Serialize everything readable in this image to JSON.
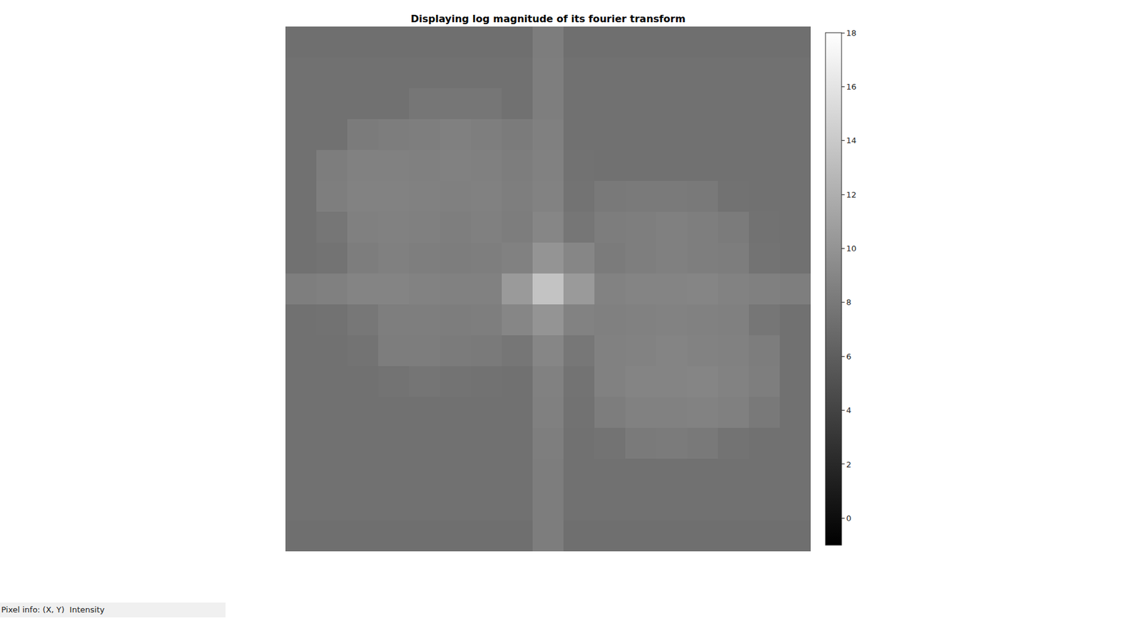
{
  "chart_data": {
    "type": "heatmap",
    "title": "Displaying log magnitude of its fourier transform",
    "color": "gray",
    "tick_labels": false,
    "cells": [
      [
        7.3,
        7.3,
        7.3,
        7.3,
        7.3,
        7.3,
        7.3,
        7.3,
        8.3,
        7.3,
        7.3,
        7.3,
        7.3,
        7.3,
        7.3,
        7.3,
        7.3
      ],
      [
        7.4,
        7.4,
        7.4,
        7.4,
        7.4,
        7.4,
        7.4,
        7.4,
        8.4,
        7.4,
        7.4,
        7.4,
        7.4,
        7.4,
        7.4,
        7.4,
        7.4
      ],
      [
        7.4,
        7.4,
        7.4,
        7.4,
        7.8,
        7.8,
        7.8,
        7.4,
        8.4,
        7.4,
        7.4,
        7.4,
        7.4,
        7.4,
        7.4,
        7.4,
        7.4
      ],
      [
        7.4,
        7.4,
        8.2,
        8.3,
        8.4,
        8.5,
        8.4,
        8.2,
        8.5,
        7.4,
        7.4,
        7.4,
        7.4,
        7.4,
        7.4,
        7.4,
        7.4
      ],
      [
        7.4,
        8.3,
        8.6,
        8.6,
        8.5,
        8.6,
        8.5,
        8.3,
        8.6,
        7.5,
        7.4,
        7.4,
        7.4,
        7.4,
        7.4,
        7.4,
        7.4
      ],
      [
        7.4,
        8.4,
        8.7,
        8.7,
        8.6,
        8.5,
        8.6,
        8.4,
        8.7,
        7.6,
        8.0,
        8.1,
        8.1,
        8.0,
        7.5,
        7.4,
        7.4
      ],
      [
        7.4,
        7.8,
        8.5,
        8.6,
        8.5,
        8.4,
        8.5,
        8.3,
        9.0,
        7.8,
        8.3,
        8.4,
        8.5,
        8.4,
        8.2,
        7.5,
        7.4
      ],
      [
        7.4,
        7.6,
        8.3,
        8.5,
        8.4,
        8.3,
        8.4,
        8.6,
        10.0,
        9.0,
        8.2,
        8.4,
        8.5,
        8.4,
        8.3,
        7.6,
        7.4
      ],
      [
        8.4,
        8.5,
        8.8,
        8.8,
        8.7,
        8.6,
        8.6,
        10.5,
        13.5,
        10.5,
        8.7,
        8.8,
        8.8,
        8.9,
        8.7,
        8.5,
        8.4
      ],
      [
        7.4,
        7.5,
        7.9,
        8.4,
        8.4,
        8.3,
        8.4,
        9.0,
        10.0,
        8.7,
        8.5,
        8.6,
        8.7,
        8.6,
        8.5,
        7.8,
        7.4
      ],
      [
        7.4,
        7.4,
        7.6,
        8.3,
        8.3,
        8.2,
        8.1,
        7.8,
        9.0,
        7.9,
        8.6,
        8.7,
        8.8,
        8.7,
        8.6,
        8.3,
        7.4
      ],
      [
        7.4,
        7.4,
        7.4,
        7.6,
        7.7,
        7.6,
        7.5,
        7.4,
        8.6,
        7.6,
        8.6,
        8.8,
        8.8,
        8.9,
        8.7,
        8.4,
        7.4
      ],
      [
        7.4,
        7.4,
        7.4,
        7.4,
        7.4,
        7.4,
        7.4,
        7.4,
        8.5,
        7.5,
        8.3,
        8.6,
        8.6,
        8.7,
        8.5,
        8.0,
        7.4
      ],
      [
        7.4,
        7.4,
        7.4,
        7.4,
        7.4,
        7.4,
        7.4,
        7.4,
        8.4,
        7.4,
        7.6,
        8.1,
        8.2,
        8.0,
        7.6,
        7.4,
        7.4
      ],
      [
        7.4,
        7.4,
        7.4,
        7.4,
        7.4,
        7.4,
        7.4,
        7.4,
        8.3,
        7.4,
        7.4,
        7.4,
        7.4,
        7.4,
        7.4,
        7.4,
        7.4
      ],
      [
        7.4,
        7.4,
        7.4,
        7.4,
        7.4,
        7.4,
        7.4,
        7.4,
        8.3,
        7.4,
        7.4,
        7.4,
        7.4,
        7.4,
        7.4,
        7.4,
        7.4
      ],
      [
        7.3,
        7.3,
        7.3,
        7.3,
        7.3,
        7.3,
        7.3,
        7.3,
        8.3,
        7.3,
        7.3,
        7.3,
        7.3,
        7.3,
        7.3,
        7.3,
        7.3
      ]
    ],
    "colorbar": {
      "range": [
        -1,
        18
      ],
      "ticks": [
        0,
        2,
        4,
        6,
        8,
        10,
        12,
        14,
        16,
        18
      ]
    }
  },
  "status_bar": "Pixel info: (X, Y)  Intensity"
}
